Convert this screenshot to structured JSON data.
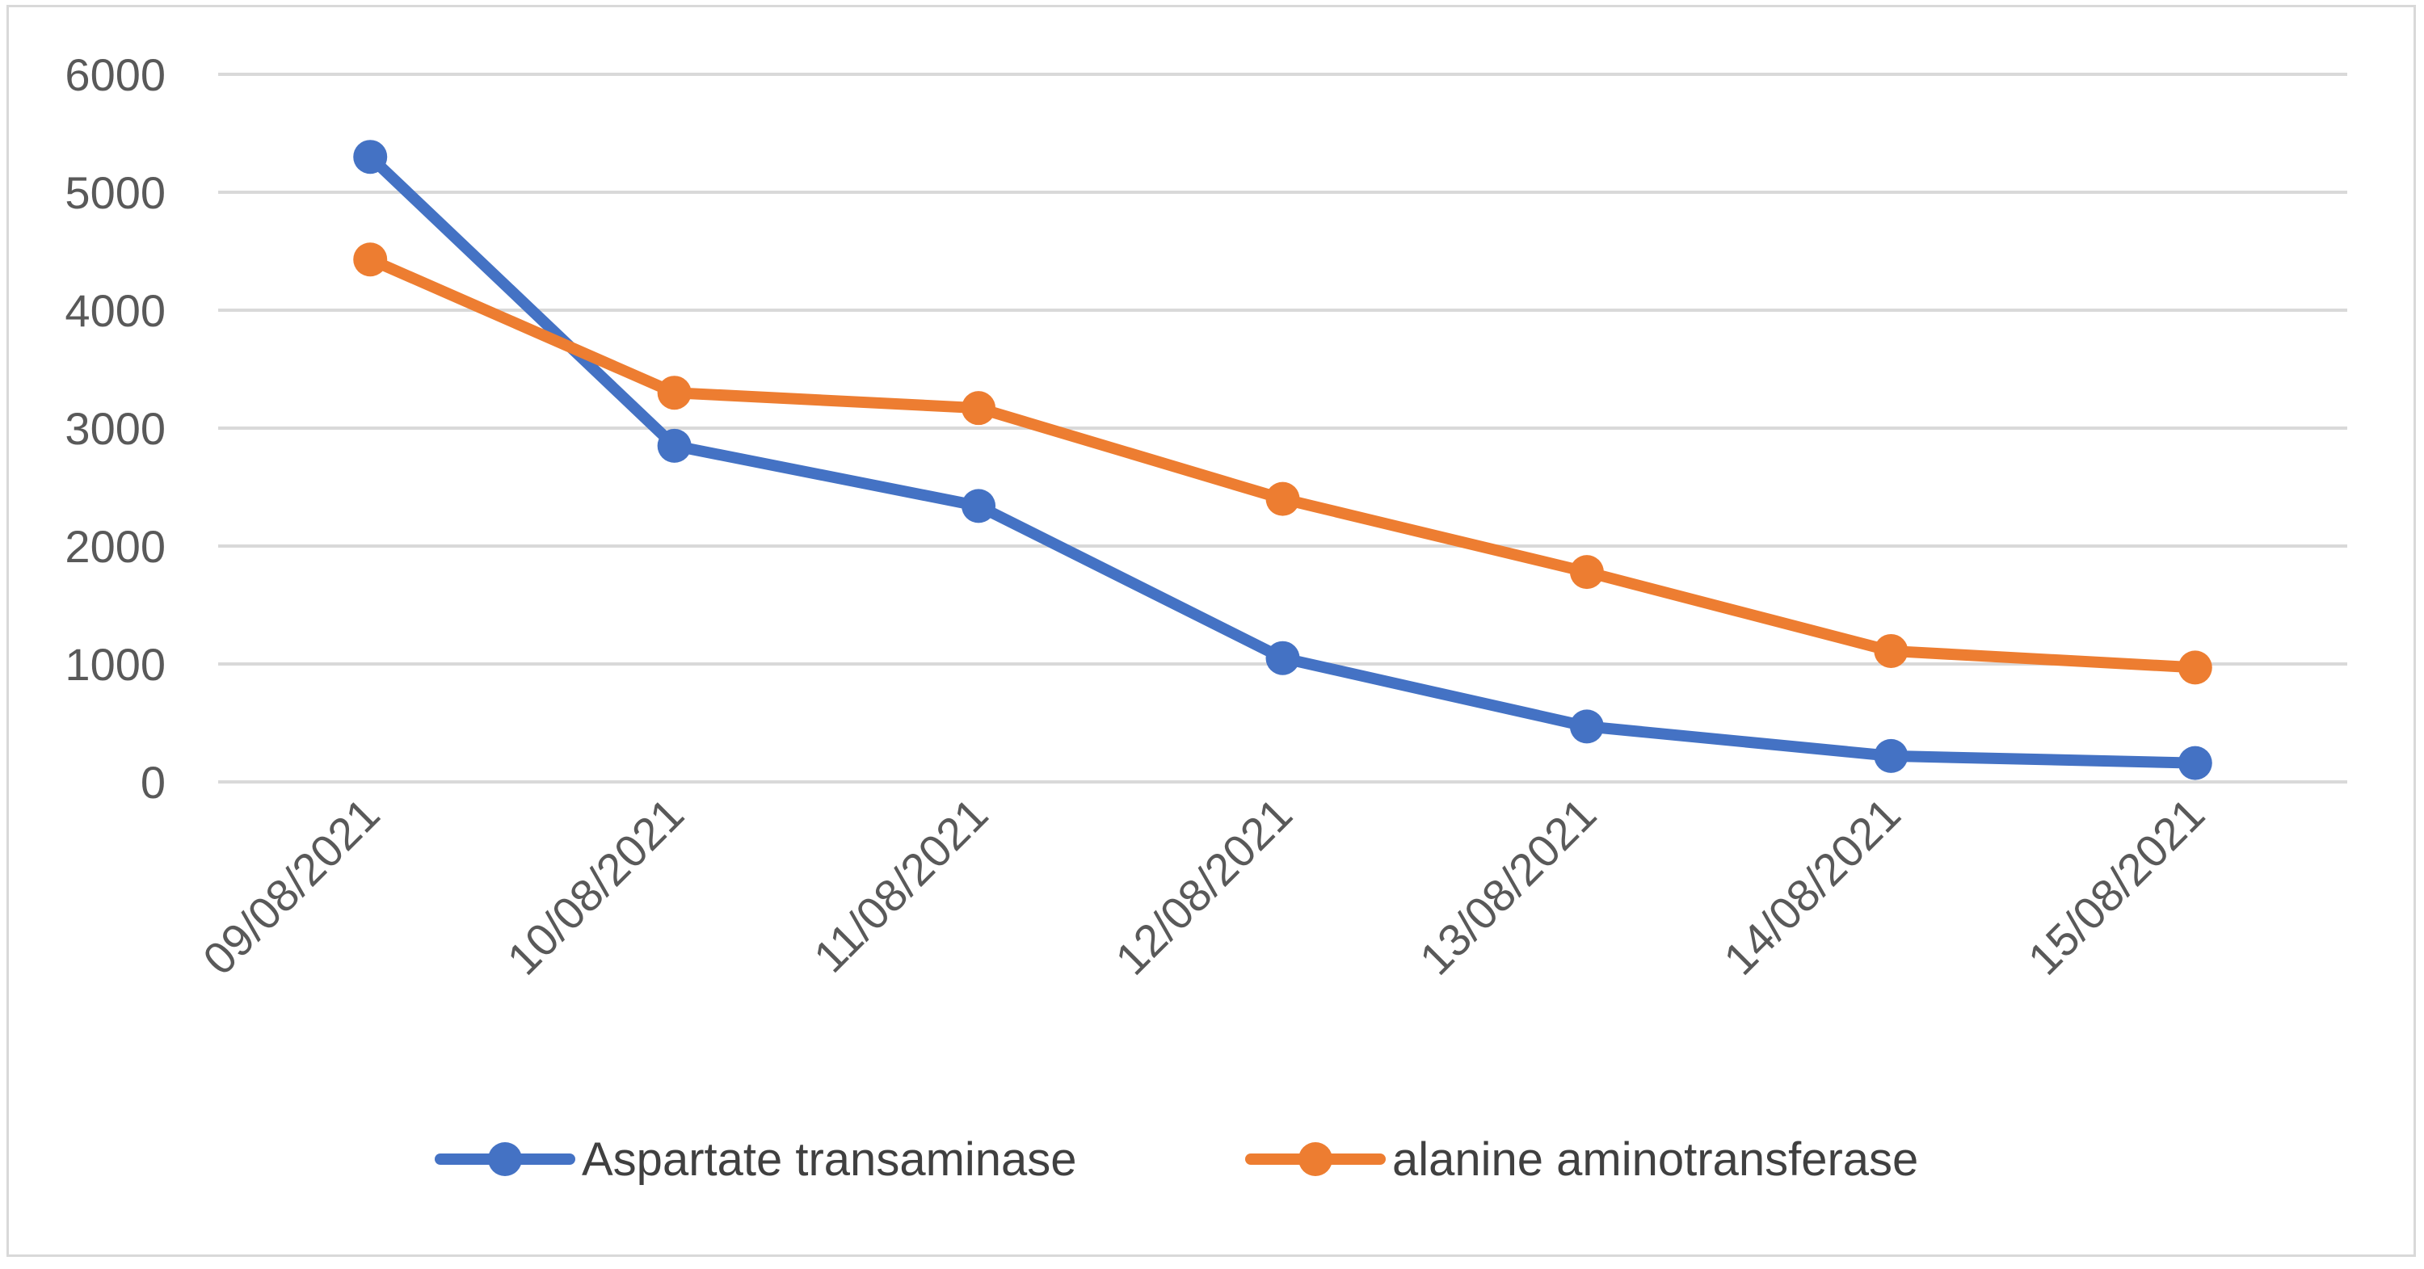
{
  "chart_data": {
    "type": "line",
    "categories": [
      "09/08/2021",
      "10/08/2021",
      "11/08/2021",
      "12/08/2021",
      "13/08/2021",
      "14/08/2021",
      "15/08/2021"
    ],
    "series": [
      {
        "name": "Aspartate transaminase",
        "color": "#4472C4",
        "values": [
          5300,
          2850,
          2340,
          1050,
          470,
          220,
          160
        ]
      },
      {
        "name": "alanine aminotransferase",
        "color": "#ED7D31",
        "values": [
          4430,
          3300,
          3170,
          2400,
          1780,
          1110,
          970
        ]
      }
    ],
    "y_ticks": [
      "0",
      "1000",
      "2000",
      "3000",
      "4000",
      "5000",
      "6000"
    ],
    "ylim": [
      0,
      6000
    ],
    "grid": true,
    "legend_position": "bottom",
    "title": "",
    "xlabel": "",
    "ylabel": ""
  }
}
